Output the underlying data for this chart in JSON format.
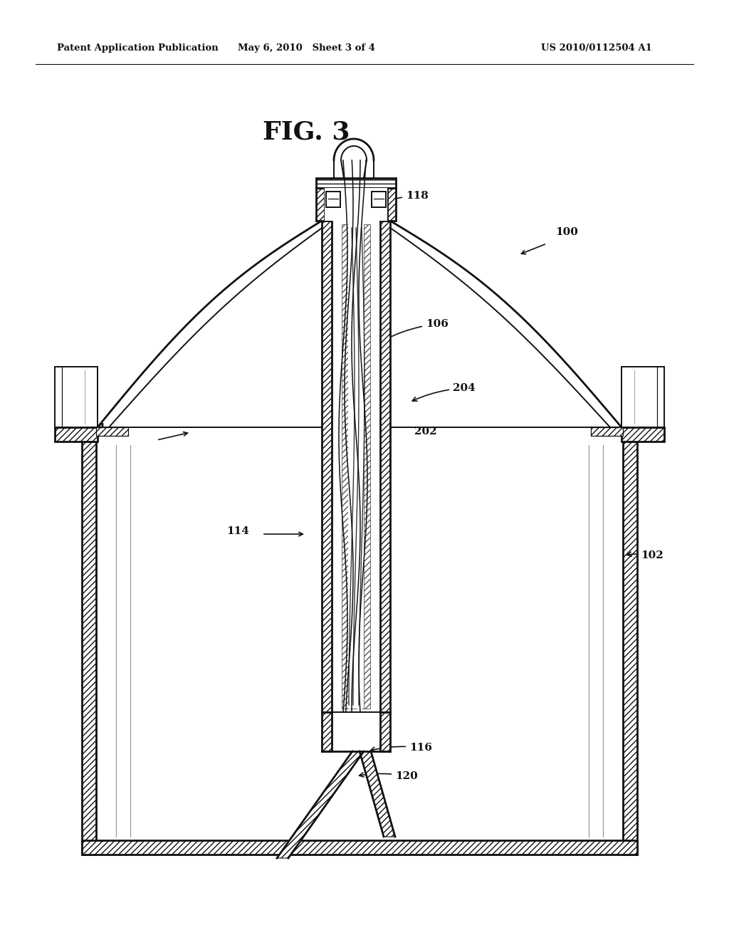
{
  "header_left": "Patent Application Publication",
  "header_center": "May 6, 2010   Sheet 3 of 4",
  "header_right": "US 2010/0112504 A1",
  "fig_label": "FIG. 3",
  "bg_color": "#ffffff",
  "line_color": "#111111"
}
